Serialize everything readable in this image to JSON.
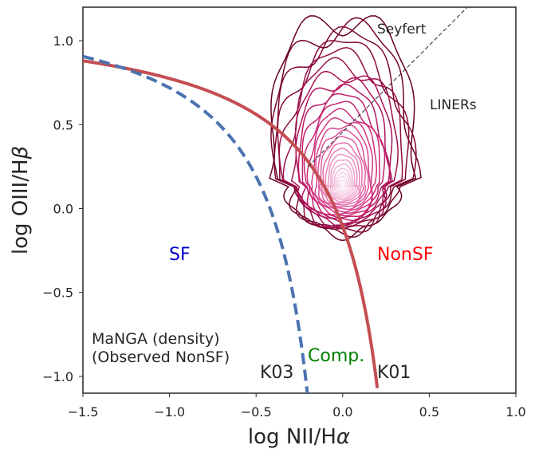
{
  "chart_data": {
    "type": "line",
    "title": "",
    "xlabel": "log NII/H",
    "xlabel_symbol": "α",
    "ylabel": "log OIII/H",
    "ylabel_symbol": "β",
    "xlim": [
      -1.5,
      1.0
    ],
    "ylim": [
      -1.1,
      1.2
    ],
    "x_ticks": [
      -1.5,
      -1.0,
      -0.5,
      0.0,
      0.5,
      1.0
    ],
    "x_tick_labels": [
      "−1.5",
      "−1.0",
      "−0.5",
      "0.0",
      "0.5",
      "1.0"
    ],
    "y_ticks": [
      -1.0,
      -0.5,
      0.0,
      0.5,
      1.0
    ],
    "y_tick_labels": [
      "−1.0",
      "−0.5",
      "0.0",
      "0.5",
      "1.0"
    ],
    "grid": false,
    "series": [
      {
        "name": "K01",
        "style": "solid",
        "color": "#c44e52",
        "formula": "0.61/(x-0.47)+1.19",
        "x_range": [
          -1.5,
          0.2
        ]
      },
      {
        "name": "K03",
        "style": "dashed",
        "color": "#4c72b0",
        "formula": "0.61/(x-0.05)+1.30",
        "x_range": [
          -1.5,
          -0.2
        ]
      },
      {
        "name": "Seyfert/LINER divider",
        "style": "thin-dashed",
        "color": "#222222",
        "points": [
          [
            -0.2,
            0.25
          ],
          [
            0.72,
            1.2
          ]
        ]
      }
    ],
    "density": {
      "name": "MaNGA (density) (Observed NonSF)",
      "peak": [
        0.0,
        0.13
      ],
      "colormap": [
        "#67001f",
        "#8e0b3f",
        "#b3155c",
        "#ce2a78",
        "#e0529a",
        "#ec8dbe",
        "#f4c2dc",
        "#f7e6f1"
      ]
    },
    "annotations": {
      "seyfert": "Seyfert",
      "liners": "LINERs",
      "sf": "SF",
      "nonsf": "NonSF",
      "comp": "Comp.",
      "k01": "K01",
      "k03": "K03",
      "manga_line1": "MaNGA (density)",
      "manga_line2": "(Observed NonSF)"
    },
    "colors": {
      "sf": "#0000cc",
      "nonsf": "#ff0000",
      "comp": "#008000"
    }
  }
}
